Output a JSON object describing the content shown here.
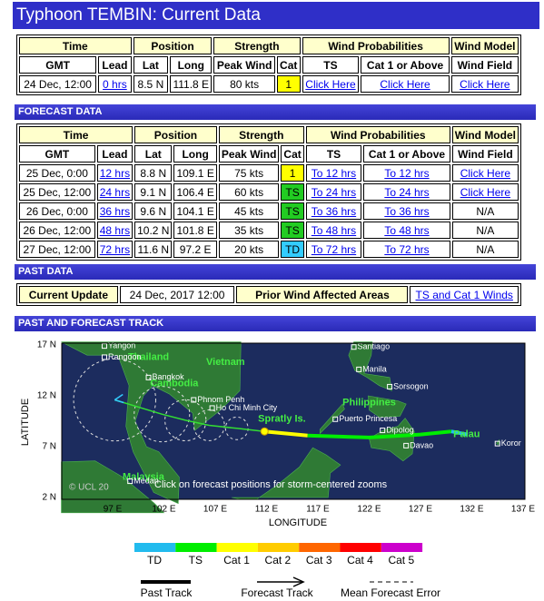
{
  "header": {
    "title": "Typhoon TEMBIN: Current Data"
  },
  "current": {
    "group_headers": [
      "Time",
      "Position",
      "Strength",
      "Wind Probabilities",
      "Wind Model"
    ],
    "column_headers": [
      "GMT",
      "Lead",
      "Lat",
      "Long",
      "Peak Wind",
      "Cat",
      "TS",
      "Cat 1 or Above",
      "Wind Field"
    ],
    "rows": [
      {
        "cells": [
          "24 Dec, 12:00",
          {
            "link": "0 hrs"
          },
          "8.5 N",
          "111.8 E",
          "80 kts",
          "1",
          {
            "link": "Click Here"
          },
          {
            "link": "Click Here"
          },
          {
            "link": "Click Here"
          }
        ],
        "cat_color": "#ffff00"
      }
    ]
  },
  "forecast": {
    "title": "FORECAST DATA",
    "group_headers": [
      "Time",
      "Position",
      "Strength",
      "Wind Probabilities",
      "Wind Model"
    ],
    "column_headers": [
      "GMT",
      "Lead",
      "Lat",
      "Long",
      "Peak Wind",
      "Cat",
      "TS",
      "Cat 1 or Above",
      "Wind Field"
    ],
    "rows": [
      {
        "cells": [
          "25 Dec, 0:00",
          {
            "link": "12 hrs"
          },
          "8.8 N",
          "109.1 E",
          "75 kts",
          "1",
          {
            "link": "To 12 hrs"
          },
          {
            "link": "To 12 hrs"
          },
          {
            "link": "Click Here"
          }
        ],
        "cat_color": "#ffff00"
      },
      {
        "cells": [
          "25 Dec, 12:00",
          {
            "link": "24 hrs"
          },
          "9.1 N",
          "106.4 E",
          "60 kts",
          "TS",
          {
            "link": "To 24 hrs"
          },
          {
            "link": "To 24 hrs"
          },
          {
            "link": "Click Here"
          }
        ],
        "cat_color": "#22cc22"
      },
      {
        "cells": [
          "26 Dec, 0:00",
          {
            "link": "36 hrs"
          },
          "9.6 N",
          "104.1 E",
          "45 kts",
          "TS",
          {
            "link": "To 36 hrs"
          },
          {
            "link": "To 36 hrs"
          },
          "N/A"
        ],
        "cat_color": "#22cc22"
      },
      {
        "cells": [
          "26 Dec, 12:00",
          {
            "link": "48 hrs"
          },
          "10.2 N",
          "101.8 E",
          "35 kts",
          "TS",
          {
            "link": "To 48 hrs"
          },
          {
            "link": "To 48 hrs"
          },
          "N/A"
        ],
        "cat_color": "#22cc22"
      },
      {
        "cells": [
          "27 Dec, 12:00",
          {
            "link": "72 hrs"
          },
          "11.6 N",
          "97.2 E",
          "20 kts",
          "TD",
          {
            "link": "To 72 hrs"
          },
          {
            "link": "To 72 hrs"
          },
          "N/A"
        ],
        "cat_color": "#33ccff"
      }
    ]
  },
  "past": {
    "title": "PAST DATA",
    "cells": [
      "Current Update",
      "24 Dec, 2017 12:00",
      "Prior Wind Affected Areas",
      {
        "link": "TS and Cat 1 Winds"
      }
    ]
  },
  "track": {
    "title": "PAST AND FORECAST TRACK",
    "y_axis_label": "LATITUDE",
    "x_axis_label": "LONGITUDE",
    "lat_ticks": [
      "17 N",
      "12 N",
      "7 N",
      "2 N"
    ],
    "lon_ticks": [
      "97 E",
      "102 E",
      "107 E",
      "112 E",
      "117 E",
      "122 E",
      "127 E",
      "132 E",
      "137 E"
    ],
    "countries": [
      "Thailand",
      "Vietnam",
      "Cambodia",
      "Philippines",
      "Malaysia",
      "Palau",
      "Spratly Is."
    ],
    "cities": [
      "Yangon",
      "Rangoon",
      "Bangkok",
      "Phnom Penh",
      "Ho Chi Minh City",
      "Santiago",
      "Manila",
      "Sorsogon",
      "Puerto Princesa",
      "Dipolog",
      "Davao",
      "Koror",
      "Medan"
    ],
    "copyright": "© UCL 20",
    "note": "Click on forecast positions for storm-centered zooms"
  },
  "legend": {
    "categories": [
      {
        "label": "TD",
        "color": "#22bbee"
      },
      {
        "label": "TS",
        "color": "#00ee00"
      },
      {
        "label": "Cat 1",
        "color": "#ffff00"
      },
      {
        "label": "Cat 2",
        "color": "#ffcc00"
      },
      {
        "label": "Cat 3",
        "color": "#ff6600"
      },
      {
        "label": "Cat 4",
        "color": "#ff0000"
      },
      {
        "label": "Cat 5",
        "color": "#cc00cc"
      }
    ],
    "lines": [
      "Past Track",
      "Forecast Track",
      "Mean Forecast Error"
    ]
  }
}
